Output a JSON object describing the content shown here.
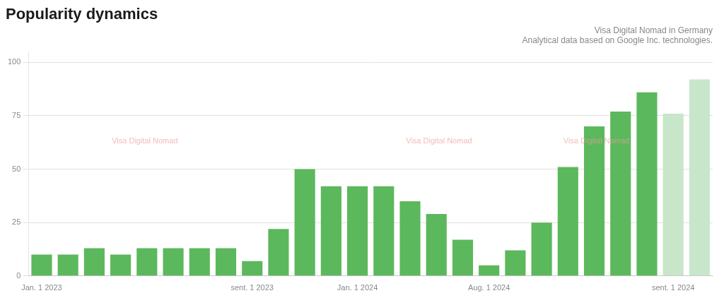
{
  "chart_data": {
    "type": "bar",
    "title": "Popularity dynamics",
    "subtitle": [
      "Visa Digital Nomad in Germany",
      "Analytical data based on Google Inc. technologies."
    ],
    "categories": [
      "Jan. 1 2023",
      null,
      null,
      null,
      null,
      null,
      null,
      null,
      "sent. 1 2023",
      null,
      null,
      null,
      "Jan. 1 2024",
      null,
      null,
      null,
      null,
      "Aug. 1 2024",
      null,
      null,
      null,
      null,
      null,
      null,
      "sent. 1 2024",
      null
    ],
    "values": [
      10,
      10,
      13,
      10,
      13,
      13,
      13,
      13,
      7,
      22,
      50,
      42,
      42,
      42,
      35,
      29,
      17,
      5,
      12,
      25,
      51,
      70,
      77,
      86,
      76,
      92
    ],
    "colors": [
      "#5cb85c",
      "#5cb85c",
      "#5cb85c",
      "#5cb85c",
      "#5cb85c",
      "#5cb85c",
      "#5cb85c",
      "#5cb85c",
      "#5cb85c",
      "#5cb85c",
      "#5cb85c",
      "#5cb85c",
      "#5cb85c",
      "#5cb85c",
      "#5cb85c",
      "#5cb85c",
      "#5cb85c",
      "#5cb85c",
      "#5cb85c",
      "#5cb85c",
      "#5cb85c",
      "#5cb85c",
      "#5cb85c",
      "#5cb85c",
      "#c8e6c9",
      "#c8e6c9"
    ],
    "ylim": [
      0,
      105
    ],
    "yticks": [
      0,
      25,
      50,
      75,
      100
    ],
    "grid": true,
    "annotations": [
      "Visa Digital Nomad",
      "Visa Digital Nomad",
      "Visa Digital Nomad"
    ]
  }
}
